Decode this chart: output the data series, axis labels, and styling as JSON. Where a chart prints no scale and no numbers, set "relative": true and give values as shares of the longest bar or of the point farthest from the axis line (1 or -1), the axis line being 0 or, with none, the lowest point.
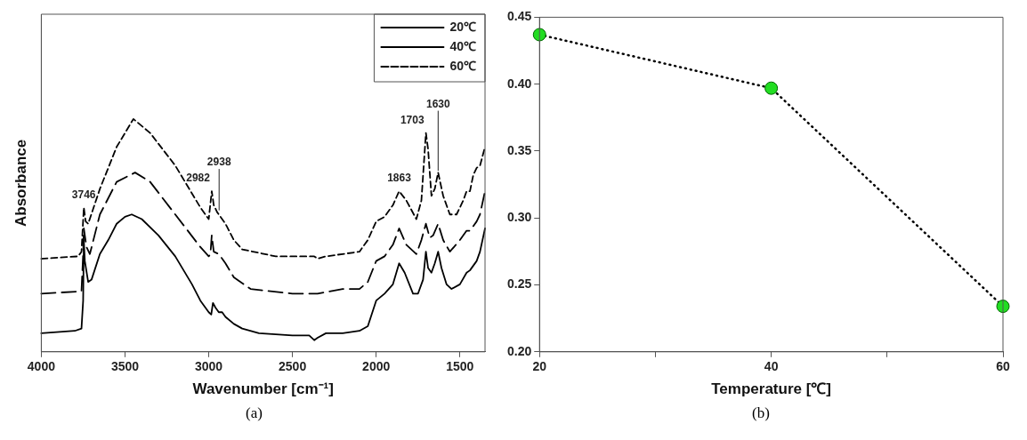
{
  "chart_data": [
    {
      "type": "line",
      "relative": true,
      "xlabel": "Wavenumber [cm⁻¹]",
      "ylabel": "Absorbance",
      "xlim": [
        4000,
        1350
      ],
      "xticks": [
        4000,
        3500,
        3000,
        2500,
        2000,
        1500
      ],
      "tick_labels": "x",
      "legend": "top right",
      "series": [
        {
          "name": "20℃",
          "color": "#000000",
          "line_style": "solid",
          "x": [
            4000,
            3800,
            3760,
            3750,
            3746,
            3740,
            3720,
            3700,
            3650,
            3600,
            3550,
            3500,
            3460,
            3400,
            3300,
            3200,
            3100,
            3050,
            3000,
            2985,
            2975,
            2960,
            2940,
            2920,
            2900,
            2850,
            2800,
            2700,
            2500,
            2400,
            2370,
            2350,
            2300,
            2200,
            2100,
            2050,
            2000,
            1950,
            1900,
            1863,
            1830,
            1780,
            1750,
            1720,
            1703,
            1690,
            1670,
            1650,
            1630,
            1610,
            1580,
            1550,
            1500,
            1460,
            1440,
            1400,
            1380,
            1350
          ],
          "values": [
            0.08,
            0.09,
            0.1,
            0.22,
            0.48,
            0.39,
            0.3,
            0.31,
            0.42,
            0.48,
            0.55,
            0.58,
            0.59,
            0.57,
            0.5,
            0.41,
            0.29,
            0.22,
            0.17,
            0.16,
            0.21,
            0.19,
            0.17,
            0.17,
            0.15,
            0.12,
            0.1,
            0.08,
            0.07,
            0.07,
            0.05,
            0.06,
            0.08,
            0.08,
            0.09,
            0.11,
            0.22,
            0.25,
            0.29,
            0.38,
            0.34,
            0.25,
            0.25,
            0.31,
            0.43,
            0.36,
            0.34,
            0.38,
            0.43,
            0.36,
            0.29,
            0.27,
            0.29,
            0.34,
            0.35,
            0.39,
            0.43,
            0.53
          ]
        },
        {
          "name": "40℃",
          "color": "#000000",
          "line_style": "dashed",
          "x": [
            4000,
            3760,
            3750,
            3746,
            3730,
            3710,
            3650,
            3550,
            3440,
            3350,
            3200,
            3050,
            3000,
            2990,
            2982,
            2970,
            2940,
            2900,
            2850,
            2750,
            2500,
            2370,
            2350,
            2200,
            2100,
            2050,
            2000,
            1950,
            1900,
            1863,
            1820,
            1760,
            1730,
            1703,
            1680,
            1660,
            1630,
            1600,
            1560,
            1500,
            1460,
            1440,
            1400,
            1380,
            1350
          ],
          "values": [
            0.25,
            0.26,
            0.42,
            0.53,
            0.45,
            0.42,
            0.59,
            0.73,
            0.77,
            0.73,
            0.59,
            0.45,
            0.41,
            0.42,
            0.5,
            0.43,
            0.42,
            0.38,
            0.32,
            0.27,
            0.25,
            0.25,
            0.25,
            0.27,
            0.27,
            0.3,
            0.39,
            0.41,
            0.46,
            0.53,
            0.46,
            0.42,
            0.48,
            0.55,
            0.49,
            0.5,
            0.55,
            0.48,
            0.43,
            0.48,
            0.52,
            0.52,
            0.56,
            0.59,
            0.69
          ]
        },
        {
          "name": "60℃",
          "color": "#000000",
          "line_style": "dashed",
          "x": [
            4000,
            3780,
            3760,
            3746,
            3735,
            3720,
            3650,
            3550,
            3450,
            3350,
            3200,
            3050,
            3000,
            2982,
            2970,
            2950,
            2920,
            2900,
            2850,
            2800,
            2600,
            2370,
            2350,
            2300,
            2200,
            2100,
            2050,
            2000,
            1950,
            1900,
            1863,
            1820,
            1760,
            1730,
            1703,
            1690,
            1670,
            1650,
            1630,
            1600,
            1560,
            1520,
            1480,
            1460,
            1440,
            1420,
            1400,
            1380,
            1350
          ],
          "values": [
            0.4,
            0.41,
            0.43,
            0.62,
            0.56,
            0.55,
            0.7,
            0.88,
            1,
            0.94,
            0.8,
            0.62,
            0.57,
            0.69,
            0.63,
            0.6,
            0.57,
            0.55,
            0.48,
            0.44,
            0.41,
            0.41,
            0.4,
            0.41,
            0.42,
            0.43,
            0.48,
            0.56,
            0.58,
            0.63,
            0.69,
            0.65,
            0.57,
            0.65,
            0.94,
            0.87,
            0.67,
            0.7,
            0.77,
            0.67,
            0.59,
            0.59,
            0.65,
            0.69,
            0.69,
            0.76,
            0.79,
            0.8,
            0.88
          ]
        }
      ],
      "annotations": [
        {
          "text": "3746",
          "x": 3746,
          "y": 0.62
        },
        {
          "text": "2982",
          "x": 2982,
          "y": 0.69
        },
        {
          "text": "2938",
          "x": 2938,
          "y": 0.6
        },
        {
          "text": "1863",
          "x": 1863,
          "y": 0.69
        },
        {
          "text": "1703",
          "x": 1703,
          "y": 0.94
        },
        {
          "text": "1630",
          "x": 1630,
          "y": 0.77
        },
        "(a)"
      ]
    },
    {
      "type": "line",
      "xlabel": "Temperature [℃]",
      "xlim": [
        20,
        60
      ],
      "xticks": [
        20,
        {
          "value": 30,
          "label": null
        },
        40,
        {
          "value": 50,
          "label": null
        },
        60
      ],
      "ylim": [
        0.2,
        0.45
      ],
      "yticks": [
        {
          "value": 0.2,
          "label": "0.20"
        },
        0.25,
        {
          "value": 0.3,
          "label": "0.30"
        },
        0.35,
        {
          "value": 0.4,
          "label": "0.40"
        },
        0.45
      ],
      "marker": "circle",
      "line_style": "dotted",
      "x": [
        20,
        40,
        60
      ],
      "values": [
        0.437,
        0.397,
        0.234
      ],
      "color": "#22dd22",
      "annotations": [
        "(b)"
      ]
    }
  ]
}
